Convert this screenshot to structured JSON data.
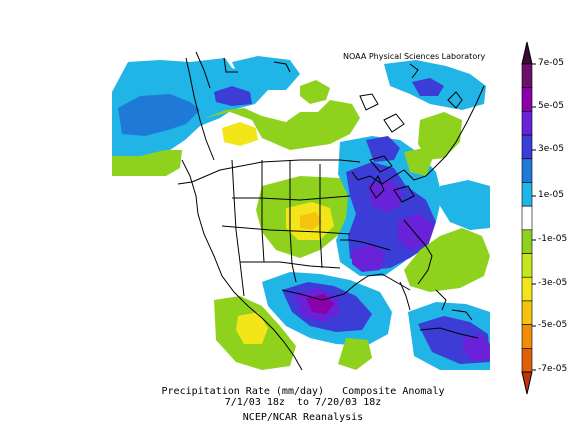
{
  "credit": "NOAA Physical Sciences Laboratory",
  "caption": {
    "line1": "Precipitation Rate (mm/day)   Composite Anomaly",
    "line2": "7/1/03 18z  to 7/20/03 18z",
    "line3": "NCEP/NCAR Reanalysis"
  },
  "colorbar": {
    "labels": [
      "7e-05",
      "5e-05",
      "3e-05",
      "1e-05",
      "-1e-05",
      "-3e-05",
      "-5e-05",
      "-7e-05"
    ],
    "colors": [
      "#6b0f6b",
      "#8b00a8",
      "#6a22d8",
      "#3c3cd6",
      "#1e7ad6",
      "#21b4e6",
      "#ffffff",
      "#8fd21e",
      "#c8e61e",
      "#f2e61a",
      "#f5c30e",
      "#f08c0a",
      "#e0600a"
    ]
  },
  "colors": {
    "land_white": "#ffffff",
    "coast": "#000000"
  }
}
